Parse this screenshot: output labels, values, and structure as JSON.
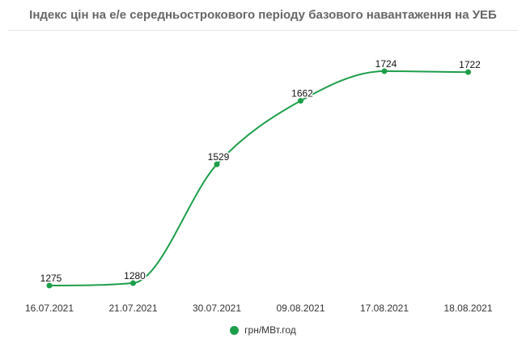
{
  "chart_data": {
    "type": "line",
    "title": "Індекс цін на е/е середньострокового періоду базового навантаження на УЕБ",
    "categories": [
      "16.07.2021",
      "21.07.2021",
      "30.07.2021",
      "09.08.2021",
      "17.08.2021",
      "18.08.2021"
    ],
    "series": [
      {
        "name": "грн/МВт.год",
        "values": [
          1275,
          1280,
          1529,
          1662,
          1724,
          1722
        ],
        "color": "#1e9e4a"
      }
    ],
    "grid": false,
    "legend": "bottom"
  }
}
